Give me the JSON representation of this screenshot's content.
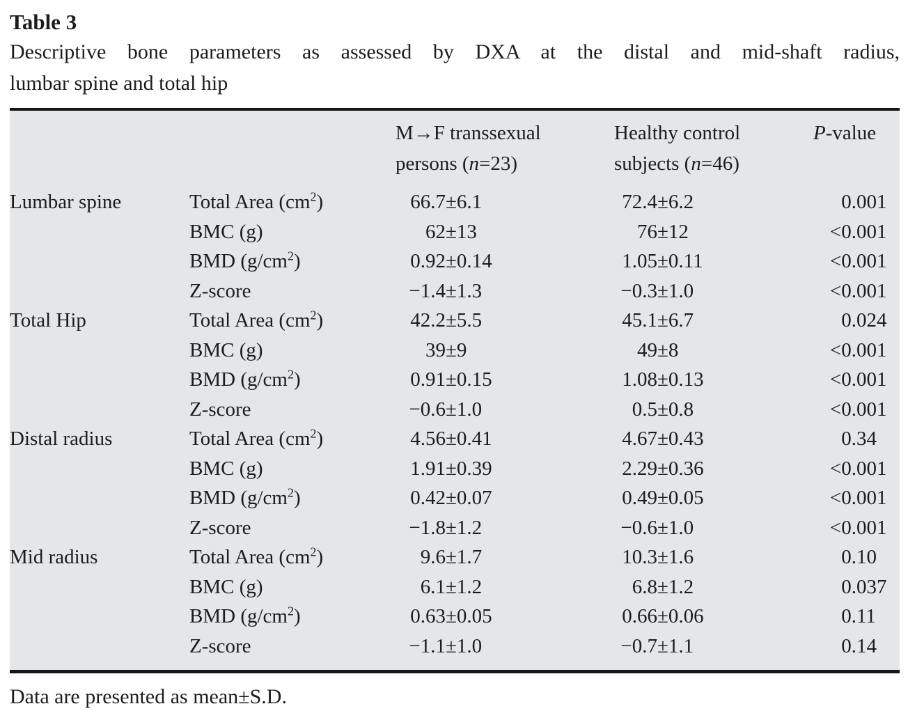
{
  "page": {
    "title": "Table 3",
    "caption_line1": "Descriptive bone parameters as assessed by DXA at the distal and mid-shaft radius,",
    "caption_line2": "lumbar spine and total hip",
    "footnote": "Data are presented as mean±S.D."
  },
  "colors": {
    "table_background": "#e5e6e8",
    "rule": "#161616",
    "text": "#1c1c1c",
    "page_background": "#ffffff"
  },
  "table": {
    "header": {
      "mtf_line1": "M→F transsexual",
      "mtf_line2_pre": "persons (",
      "mtf_n": "n",
      "mtf_line2_post": "=23)",
      "ctrl_line1": "Healthy control",
      "ctrl_line2_pre": "subjects (",
      "ctrl_n": "n",
      "ctrl_line2_post": "=46)",
      "p_italic": "P",
      "p_rest": "-value"
    },
    "rows": [
      {
        "site": "Lumbar spine",
        "param_pre": "Total Area (cm",
        "param_sup": "2",
        "param_post": ")",
        "mtf": "66.7±6.1",
        "ctrl": "72.4±6.2",
        "p": "0.001"
      },
      {
        "site": "",
        "param_pre": "BMC (g)",
        "param_sup": "",
        "param_post": "",
        "mtf": "62±13",
        "ctrl": "76±12",
        "p": "<0.001"
      },
      {
        "site": "",
        "param_pre": "BMD (g/cm",
        "param_sup": "2",
        "param_post": ")",
        "mtf": "0.92±0.14",
        "ctrl": "1.05±0.11",
        "p": "<0.001"
      },
      {
        "site": "",
        "param_pre": "Z-score",
        "param_sup": "",
        "param_post": "",
        "mtf": "−1.4±1.3",
        "ctrl": "−0.3±1.0",
        "p": "<0.001"
      },
      {
        "site": "Total Hip",
        "param_pre": "Total Area (cm",
        "param_sup": "2",
        "param_post": ")",
        "mtf": "42.2±5.5",
        "ctrl": "45.1±6.7",
        "p": "0.024"
      },
      {
        "site": "",
        "param_pre": "BMC (g)",
        "param_sup": "",
        "param_post": "",
        "mtf": "39±9",
        "ctrl": "49±8",
        "p": "<0.001"
      },
      {
        "site": "",
        "param_pre": "BMD (g/cm",
        "param_sup": "2",
        "param_post": ")",
        "mtf": "0.91±0.15",
        "ctrl": "1.08±0.13",
        "p": "<0.001"
      },
      {
        "site": "",
        "param_pre": "Z-score",
        "param_sup": "",
        "param_post": "",
        "mtf": "−0.6±1.0",
        "ctrl": "0.5±0.8",
        "p": "<0.001"
      },
      {
        "site": "Distal radius",
        "param_pre": "Total Area (cm",
        "param_sup": "2",
        "param_post": ")",
        "mtf": "4.56±0.41",
        "ctrl": "4.67±0.43",
        "p": "0.34"
      },
      {
        "site": "",
        "param_pre": "BMC (g)",
        "param_sup": "",
        "param_post": "",
        "mtf": "1.91±0.39",
        "ctrl": "2.29±0.36",
        "p": "<0.001"
      },
      {
        "site": "",
        "param_pre": "BMD (g/cm",
        "param_sup": "2",
        "param_post": ")",
        "mtf": "0.42±0.07",
        "ctrl": "0.49±0.05",
        "p": "<0.001"
      },
      {
        "site": "",
        "param_pre": "Z-score",
        "param_sup": "",
        "param_post": "",
        "mtf": "−1.8±1.2",
        "ctrl": "−0.6±1.0",
        "p": "<0.001"
      },
      {
        "site": "Mid radius",
        "param_pre": "Total Area (cm",
        "param_sup": "2",
        "param_post": ")",
        "mtf": "9.6±1.7",
        "ctrl": "10.3±1.6",
        "p": "0.10"
      },
      {
        "site": "",
        "param_pre": "BMC (g)",
        "param_sup": "",
        "param_post": "",
        "mtf": "6.1±1.2",
        "ctrl": "6.8±1.2",
        "p": "0.037"
      },
      {
        "site": "",
        "param_pre": "BMD (g/cm",
        "param_sup": "2",
        "param_post": ")",
        "mtf": "0.63±0.05",
        "ctrl": "0.66±0.06",
        "p": "0.11"
      },
      {
        "site": "",
        "param_pre": "Z-score",
        "param_sup": "",
        "param_post": "",
        "mtf": "−1.1±1.0",
        "ctrl": "−0.7±1.1",
        "p": "0.14"
      }
    ]
  }
}
